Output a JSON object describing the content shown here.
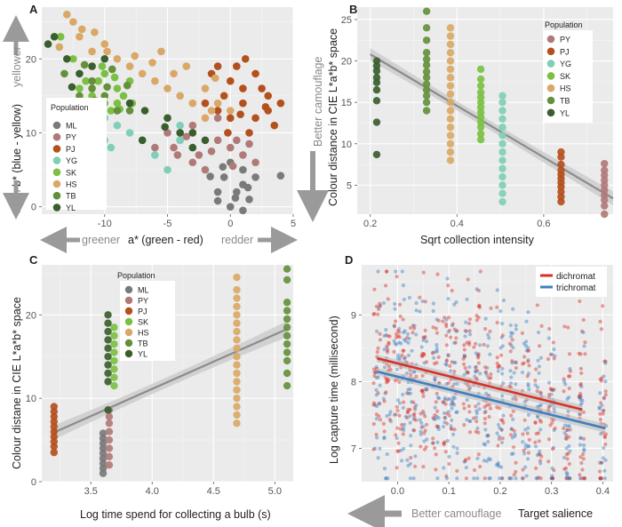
{
  "colors": {
    "ML": "#7a7a7a",
    "PY": "#b07a78",
    "PJ": "#b4501e",
    "YG": "#7fcfb6",
    "SK": "#7bc043",
    "HS": "#d9a866",
    "TB": "#64903c",
    "YL": "#3a5e2e",
    "dichromat": "#d73027",
    "trichromat": "#3f7fc0"
  },
  "panels": {
    "A": {
      "letter": "A",
      "xlabel": "a* (green - red)",
      "ylabel": "b* (blue - yellow)",
      "arrow_left": "greener",
      "arrow_right": "redder",
      "arrow_up": "yellower",
      "arrow_down": "bluer",
      "xticks": [
        "-10",
        "-5",
        "0",
        "5"
      ],
      "yticks": [
        "0",
        "10",
        "20"
      ],
      "legend_title": "Population",
      "legend": [
        "ML",
        "PY",
        "PJ",
        "YG",
        "SK",
        "HS",
        "TB",
        "YL"
      ]
    },
    "B": {
      "letter": "B",
      "xlabel": "Sqrt collection intensity",
      "ylabel": "Colour distance in CIE L*a*b* space",
      "side_label": "Better camouflage",
      "xticks": [
        "0.2",
        "0.4",
        "0.6"
      ],
      "yticks": [
        "5",
        "10",
        "15",
        "20",
        "25"
      ],
      "legend_title": "Population",
      "legend": [
        "PY",
        "PJ",
        "YG",
        "SK",
        "HS",
        "TB",
        "YL"
      ]
    },
    "C": {
      "letter": "C",
      "xlabel": "Log time spend for collecting a bulb (s)",
      "ylabel": "Colour distane in CIE L*a*b* space",
      "xticks": [
        "3.5",
        "4.0",
        "4.5",
        "5.0"
      ],
      "yticks": [
        "0",
        "10",
        "20"
      ],
      "legend_title": "Population",
      "legend": [
        "ML",
        "PY",
        "PJ",
        "SK",
        "HS",
        "TB",
        "YL"
      ]
    },
    "D": {
      "letter": "D",
      "xlabel": "Target salience",
      "ylabel": "Log capture time (millisecond)",
      "arrow_label": "Better camouflage",
      "xticks": [
        "0.0",
        "0.1",
        "0.2",
        "0.3",
        "0.4"
      ],
      "yticks": [
        "7",
        "8",
        "9"
      ],
      "legend": [
        "dichromat",
        "trichromat"
      ]
    }
  },
  "chart_data": [
    {
      "panel": "A",
      "type": "scatter",
      "xlabel": "a* (green - red)",
      "ylabel": "b* (blue - yellow)",
      "xlim": [
        -15,
        5
      ],
      "ylim": [
        -1,
        27
      ],
      "grid": true,
      "legend_position": "left",
      "series": [
        {
          "name": "ML",
          "points": [
            [
              0,
              0
            ],
            [
              0.5,
              2
            ],
            [
              1,
              3
            ],
            [
              1.5,
              1
            ],
            [
              -0.5,
              4
            ],
            [
              1,
              5
            ],
            [
              2,
              4
            ],
            [
              0,
              6
            ],
            [
              -1,
              2
            ],
            [
              1,
              -0.5
            ],
            [
              -1,
              0.8
            ],
            [
              0.4,
              1.2
            ],
            [
              -0.6,
              5.4
            ],
            [
              1.4,
              2.6
            ],
            [
              -1.6,
              4.1
            ],
            [
              4,
              4.2
            ]
          ]
        },
        {
          "name": "PY",
          "points": [
            [
              -4,
              9
            ],
            [
              -3,
              6
            ],
            [
              -2,
              5
            ],
            [
              -1,
              9
            ],
            [
              0,
              8
            ],
            [
              1,
              7
            ],
            [
              2,
              6
            ],
            [
              -4.5,
              8
            ],
            [
              -3,
              11
            ],
            [
              -1,
              12
            ],
            [
              -5,
              10
            ],
            [
              -6,
              8
            ],
            [
              -2.5,
              7
            ],
            [
              -3.5,
              9.5
            ],
            [
              0.5,
              9
            ],
            [
              1.5,
              8.5
            ],
            [
              -1.5,
              7.5
            ],
            [
              0.2,
              5.5
            ],
            [
              -4.2,
              7
            ]
          ]
        },
        {
          "name": "PJ",
          "points": [
            [
              -1,
              19
            ],
            [
              0,
              17
            ],
            [
              1,
              16
            ],
            [
              2,
              18
            ],
            [
              3,
              15
            ],
            [
              1,
              14
            ],
            [
              0,
              12
            ],
            [
              -1,
              13
            ],
            [
              2,
              12
            ],
            [
              3,
              13
            ],
            [
              4,
              14
            ],
            [
              1.5,
              10
            ],
            [
              -0.5,
              15
            ],
            [
              0.5,
              19
            ],
            [
              2.5,
              16
            ],
            [
              -2,
              14
            ],
            [
              3.5,
              11
            ],
            [
              -1.5,
              18
            ],
            [
              -0.2,
              10
            ],
            [
              1.2,
              20
            ],
            [
              2.8,
              13.5
            ],
            [
              0.8,
              12.5
            ]
          ]
        },
        {
          "name": "YG",
          "points": [
            [
              -11,
              14
            ],
            [
              -10,
              12
            ],
            [
              -9,
              11
            ],
            [
              -10,
              9
            ],
            [
              -12,
              13
            ],
            [
              -11,
              10
            ],
            [
              -9,
              13
            ],
            [
              -8,
              10
            ],
            [
              -5,
              12
            ],
            [
              -4,
              11
            ],
            [
              -6,
              7
            ],
            [
              -5,
              5
            ],
            [
              -7,
              9
            ],
            [
              -9.5,
              8
            ],
            [
              -11.5,
              11
            ],
            [
              -4,
              9
            ]
          ]
        },
        {
          "name": "SK",
          "points": [
            [
              -10,
              18
            ],
            [
              -9,
              16
            ],
            [
              -11,
              15
            ],
            [
              -10,
              14
            ],
            [
              -12,
              16
            ],
            [
              -8,
              17
            ],
            [
              -9,
              14
            ],
            [
              -10.5,
              17
            ],
            [
              -11.5,
              17
            ],
            [
              -9.5,
              13
            ],
            [
              -8.5,
              15
            ],
            [
              -11,
              13
            ],
            [
              -13.5,
              23
            ],
            [
              -12.5,
              20
            ],
            [
              -10.2,
              19
            ],
            [
              -9.2,
              17.5
            ],
            [
              -8.8,
              13.2
            ],
            [
              -7.8,
              14
            ]
          ]
        },
        {
          "name": "HS",
          "points": [
            [
              -13,
              26
            ],
            [
              -12,
              23
            ],
            [
              -11,
              21
            ],
            [
              -10,
              22
            ],
            [
              -9,
              20
            ],
            [
              -8,
              19
            ],
            [
              -7,
              18
            ],
            [
              -6,
              17
            ],
            [
              -5,
              16
            ],
            [
              -4,
              15
            ],
            [
              -3,
              14
            ],
            [
              -2,
              12
            ],
            [
              -1,
              14
            ],
            [
              0,
              13
            ],
            [
              -5.5,
              21
            ],
            [
              -3.5,
              19
            ],
            [
              -4.5,
              18
            ],
            [
              -2,
              16
            ],
            [
              -1.5,
              13
            ],
            [
              -6.2,
              19.5
            ],
            [
              -12.5,
              25
            ],
            [
              -11.8,
              24
            ],
            [
              -10.8,
              23.6
            ],
            [
              -13.6,
              21.6
            ],
            [
              -9.8,
              21
            ],
            [
              -7.6,
              20.4
            ],
            [
              -1.2,
              17.4
            ]
          ]
        },
        {
          "name": "TB",
          "points": [
            [
              -12,
              15
            ],
            [
              -11,
              16
            ],
            [
              -10,
              15
            ],
            [
              -9,
              13
            ],
            [
              -11,
              17
            ],
            [
              -12.5,
              14
            ],
            [
              -10.5,
              12
            ],
            [
              -8,
              13
            ],
            [
              -9.8,
              16.2
            ],
            [
              -10.8,
              14.4
            ],
            [
              -13.2,
              18
            ],
            [
              -11.6,
              19.2
            ],
            [
              -9.4,
              18.6
            ],
            [
              -8.2,
              16.4
            ]
          ]
        },
        {
          "name": "YL",
          "points": [
            [
              -14,
              23
            ],
            [
              -13,
              20
            ],
            [
              -12,
              18
            ],
            [
              -11,
              19
            ],
            [
              -10,
              20
            ],
            [
              -8,
              14
            ],
            [
              -5,
              12
            ],
            [
              -4,
              10
            ],
            [
              -3,
              10
            ],
            [
              -7,
              9
            ],
            [
              -3,
              8
            ],
            [
              -2,
              9
            ],
            [
              -12.6,
              16.2
            ],
            [
              -14.5,
              22
            ],
            [
              -5.2,
              10.8
            ],
            [
              -6.8,
              13
            ]
          ]
        }
      ]
    },
    {
      "panel": "B",
      "type": "scatter",
      "xlabel": "Sqrt collection intensity",
      "ylabel": "Colour distance in CIE L*a*b* space",
      "xlim": [
        0.17,
        0.76
      ],
      "ylim": [
        1.5,
        26.5
      ],
      "grid": true,
      "legend_position": "top-right",
      "series": [
        {
          "name": "PY",
          "x": 0.74,
          "values": [
            1.5,
            2.5,
            3.2,
            3.8,
            4.4,
            5,
            5.6,
            6.2,
            6.8,
            7.6
          ]
        },
        {
          "name": "PJ",
          "x": 0.64,
          "values": [
            3,
            3.6,
            4.2,
            4.8,
            5.3,
            5.8,
            6.3,
            6.8,
            7.5,
            8.4,
            9
          ]
        },
        {
          "name": "YG",
          "x": 0.505,
          "values": [
            3,
            4,
            5,
            6,
            7,
            8,
            9,
            10,
            11,
            12,
            13,
            14,
            15,
            15.8
          ]
        },
        {
          "name": "SK",
          "x": 0.455,
          "values": [
            10.5,
            11.2,
            12,
            12.6,
            13.2,
            13.8,
            14.4,
            15,
            15.6,
            16.2,
            17,
            17.8,
            19
          ]
        },
        {
          "name": "HS",
          "x": 0.385,
          "values": [
            8,
            9,
            10,
            11,
            12,
            13,
            14,
            15,
            16,
            17,
            18,
            19,
            20,
            21,
            22,
            23,
            24
          ]
        },
        {
          "name": "TB",
          "x": 0.33,
          "values": [
            14,
            15,
            15.8,
            16.5,
            17.2,
            18,
            18.7,
            19.5,
            20.2,
            21,
            22.5,
            24,
            26
          ]
        },
        {
          "name": "YL",
          "x": 0.215,
          "values": [
            8.7,
            12.6,
            15.2,
            16.5,
            17.4,
            18,
            18.8,
            19.4,
            20
          ]
        }
      ],
      "trend": {
        "x": [
          0.2,
          0.76
        ],
        "y": [
          20.8,
          3.4
        ]
      }
    },
    {
      "panel": "C",
      "type": "scatter",
      "xlabel": "Log time spend for collecting a bulb (s)",
      "ylabel": "Colour distane in CIE L*a*b* space",
      "xlim": [
        3.1,
        5.15
      ],
      "ylim": [
        0,
        26
      ],
      "grid": true,
      "legend_position": "top-left",
      "series": [
        {
          "name": "ML",
          "x": 3.6,
          "values": [
            1,
            1.6,
            2.2,
            2.8,
            3.4,
            4,
            4.6,
            5.2,
            5.8
          ]
        },
        {
          "name": "PY",
          "x": 3.65,
          "values": [
            2,
            3,
            4,
            5,
            6,
            7,
            7.8,
            8.6
          ]
        },
        {
          "name": "PJ",
          "x": 3.2,
          "values": [
            3.5,
            4.2,
            4.8,
            5.4,
            6,
            6.6,
            7.2,
            7.8,
            8.4,
            9
          ]
        },
        {
          "name": "SK",
          "x": 3.69,
          "values": [
            11.5,
            12.5,
            13.5,
            14.5,
            15.5,
            16.5,
            17.5,
            18.5
          ]
        },
        {
          "name": "HS",
          "x": 4.69,
          "values": [
            7,
            8,
            9,
            10,
            11,
            12,
            13,
            14,
            15,
            16,
            17,
            18,
            19,
            20,
            21,
            22,
            23,
            24.5
          ]
        },
        {
          "name": "TB",
          "x": 5.1,
          "values": [
            11.5,
            13,
            14.5,
            15.5,
            16.5,
            17.5,
            18.5,
            19.5,
            20.5,
            21.5,
            24.2,
            25.5
          ]
        },
        {
          "name": "YL",
          "x": 3.64,
          "values": [
            8.6,
            12,
            13,
            14,
            15,
            16,
            17,
            18,
            19,
            20
          ]
        }
      ],
      "trend": {
        "x": [
          3.2,
          5.1
        ],
        "y": [
          5.9,
          18.3
        ]
      }
    },
    {
      "panel": "D",
      "type": "scatter",
      "xlabel": "Target salience",
      "ylabel": "Log capture time (millisecond)",
      "xlim": [
        -0.07,
        0.42
      ],
      "ylim": [
        6.5,
        9.75
      ],
      "grid": true,
      "legend_position": "top-right",
      "columns": [
        -0.04,
        -0.02,
        0.0,
        0.015,
        0.03,
        0.05,
        0.075,
        0.095,
        0.11,
        0.135,
        0.155,
        0.175,
        0.2,
        0.225,
        0.25,
        0.275,
        0.3,
        0.33,
        0.36,
        0.4
      ],
      "series": [
        {
          "name": "dichromat",
          "trend": {
            "x": [
              -0.04,
              0.36
            ],
            "y": [
              8.35,
              7.58
            ]
          }
        },
        {
          "name": "trichromat",
          "trend": {
            "x": [
              -0.04,
              0.405
            ],
            "y": [
              8.15,
              7.3
            ]
          }
        }
      ]
    }
  ]
}
